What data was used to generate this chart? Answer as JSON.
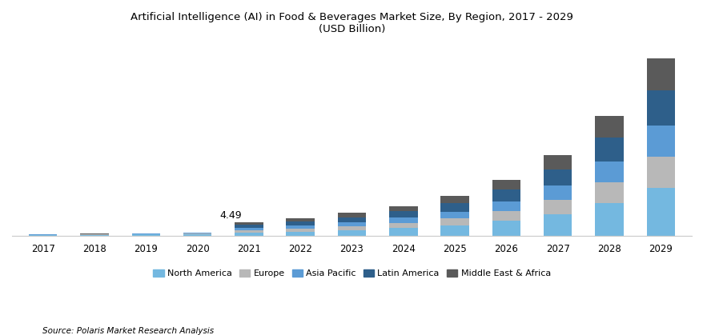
{
  "years": [
    2017,
    2018,
    2019,
    2020,
    2021,
    2022,
    2023,
    2024,
    2025,
    2026,
    2027,
    2028,
    2029
  ],
  "north_america": [
    0.3,
    0.38,
    0.48,
    0.62,
    1.1,
    1.45,
    1.9,
    2.55,
    3.4,
    4.9,
    7.1,
    10.5,
    15.5
  ],
  "europe": [
    0.1,
    0.13,
    0.17,
    0.21,
    0.82,
    1.05,
    1.35,
    1.75,
    2.3,
    3.2,
    4.6,
    6.8,
    10.1
  ],
  "asia_pacific": [
    0.09,
    0.12,
    0.15,
    0.19,
    0.78,
    1.0,
    1.28,
    1.65,
    2.2,
    3.1,
    4.5,
    6.6,
    9.8
  ],
  "latin_america": [
    0.05,
    0.07,
    0.09,
    0.11,
    0.95,
    1.2,
    1.55,
    2.0,
    2.65,
    3.7,
    5.3,
    7.8,
    11.5
  ],
  "middle_east_africa": [
    0.04,
    0.05,
    0.06,
    0.08,
    0.84,
    1.05,
    1.35,
    1.75,
    2.3,
    3.2,
    4.6,
    6.8,
    10.1
  ],
  "colors": {
    "north_america": "#74B8E0",
    "europe": "#B8B8B8",
    "asia_pacific": "#5B9BD5",
    "latin_america": "#2E5F8A",
    "middle_east_africa": "#5A5A5A"
  },
  "title_line1": "Artificial Intelligence (AI) in Food & Beverages Market Size, By Region, 2017 - 2029",
  "title_line2": "(USD Billion)",
  "annotation_year": 2021,
  "annotation_text": "4.49",
  "legend_labels": [
    "North America",
    "Europe",
    "Asia Pacific",
    "Latin America",
    "Middle East & Africa"
  ],
  "source_text": "Source: Polaris Market Research Analysis",
  "bar_width": 0.55,
  "ylim": [
    0,
    62
  ]
}
